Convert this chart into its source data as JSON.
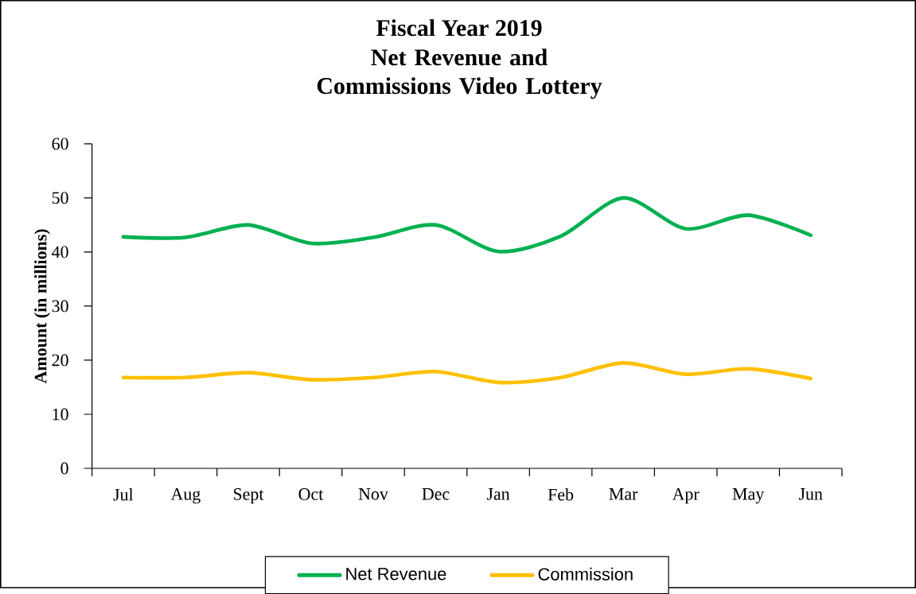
{
  "chart_data": {
    "type": "line",
    "title": "Fiscal Year 2019",
    "subtitle": "Net Revenue and Commissions Video Lottery",
    "ylabel": "Amount  (in millions)",
    "categories": [
      "Jul",
      "Aug",
      "Sept",
      "Oct",
      "Nov",
      "Dec",
      "Jan",
      "Feb",
      "Mar",
      "Apr",
      "May",
      "Jun"
    ],
    "series": [
      {
        "name": "Net Revenue",
        "color": "#00b050",
        "values": [
          42.8,
          42.7,
          45.0,
          41.6,
          42.7,
          45.0,
          40.1,
          42.9,
          50.0,
          44.3,
          46.8,
          43.1
        ]
      },
      {
        "name": "Commission",
        "color": "#ffc000",
        "values": [
          16.8,
          16.8,
          17.7,
          16.4,
          16.8,
          17.9,
          15.9,
          16.8,
          19.5,
          17.4,
          18.4,
          16.6
        ]
      }
    ],
    "ylim": [
      0,
      60
    ],
    "yticks": [
      0,
      10,
      20,
      30,
      40,
      50,
      60
    ],
    "grid": false,
    "legend": "bottom",
    "marker": "none",
    "line_style": "solid"
  }
}
